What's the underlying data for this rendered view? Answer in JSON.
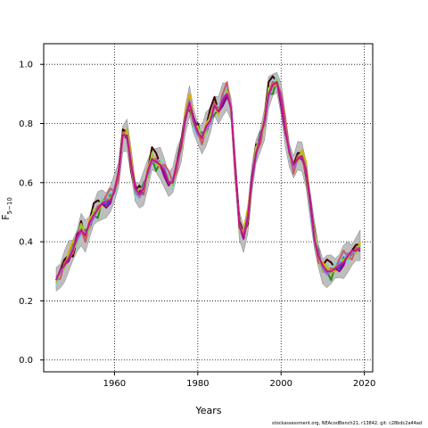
{
  "chart_data": {
    "type": "line",
    "title": "",
    "xlabel": "Years",
    "ylabel_main": "F",
    "ylabel_sub": "5−10",
    "xlim": [
      1943,
      2022
    ],
    "ylim": [
      -0.04,
      1.07
    ],
    "xticks": [
      1960,
      1980,
      2000,
      2020
    ],
    "yticks": [
      0.0,
      0.2,
      0.4,
      0.6,
      0.8,
      1.0
    ],
    "ytick_labels": [
      "0.0",
      "0.2",
      "0.4",
      "0.6",
      "0.8",
      "1.0"
    ],
    "xtick_labels": [
      "1960",
      "1980",
      "2000",
      "2020"
    ],
    "grid": "dotted",
    "x_range": [
      1946,
      2019
    ],
    "baseline": [
      [
        1946,
        0.27
      ],
      [
        1948,
        0.32
      ],
      [
        1950,
        0.37
      ],
      [
        1952,
        0.44
      ],
      [
        1953,
        0.42
      ],
      [
        1955,
        0.49
      ],
      [
        1957,
        0.53
      ],
      [
        1959,
        0.54
      ],
      [
        1960,
        0.57
      ],
      [
        1961,
        0.63
      ],
      [
        1962,
        0.76
      ],
      [
        1963,
        0.76
      ],
      [
        1964,
        0.66
      ],
      [
        1965,
        0.57
      ],
      [
        1966,
        0.56
      ],
      [
        1967,
        0.58
      ],
      [
        1968,
        0.63
      ],
      [
        1969,
        0.68
      ],
      [
        1970,
        0.67
      ],
      [
        1971,
        0.66
      ],
      [
        1972,
        0.64
      ],
      [
        1973,
        0.6
      ],
      [
        1974,
        0.6
      ],
      [
        1975,
        0.66
      ],
      [
        1976,
        0.72
      ],
      [
        1977,
        0.82
      ],
      [
        1978,
        0.87
      ],
      [
        1979,
        0.8
      ],
      [
        1980,
        0.77
      ],
      [
        1981,
        0.75
      ],
      [
        1982,
        0.78
      ],
      [
        1983,
        0.81
      ],
      [
        1984,
        0.86
      ],
      [
        1985,
        0.84
      ],
      [
        1986,
        0.88
      ],
      [
        1987,
        0.9
      ],
      [
        1988,
        0.85
      ],
      [
        1989,
        0.64
      ],
      [
        1990,
        0.45
      ],
      [
        1991,
        0.42
      ],
      [
        1992,
        0.48
      ],
      [
        1993,
        0.6
      ],
      [
        1994,
        0.7
      ],
      [
        1995,
        0.75
      ],
      [
        1996,
        0.8
      ],
      [
        1997,
        0.9
      ],
      [
        1998,
        0.93
      ],
      [
        1999,
        0.94
      ],
      [
        2000,
        0.88
      ],
      [
        2001,
        0.78
      ],
      [
        2002,
        0.7
      ],
      [
        2003,
        0.65
      ],
      [
        2004,
        0.68
      ],
      [
        2005,
        0.69
      ],
      [
        2006,
        0.64
      ],
      [
        2007,
        0.52
      ],
      [
        2008,
        0.41
      ],
      [
        2009,
        0.35
      ],
      [
        2010,
        0.31
      ],
      [
        2011,
        0.3
      ],
      [
        2012,
        0.3
      ],
      [
        2013,
        0.31
      ],
      [
        2014,
        0.32
      ],
      [
        2015,
        0.33
      ],
      [
        2016,
        0.35
      ],
      [
        2017,
        0.36
      ],
      [
        2018,
        0.37
      ],
      [
        2019,
        0.38
      ]
    ],
    "band_halfwidth": 0.045,
    "series": [
      {
        "color": "#3a0000",
        "offset": [
          0.0,
          0.01,
          0.02,
          0.01,
          -0.02,
          0.0,
          0.03,
          -0.02,
          0.01,
          0.04,
          0.03,
          0.0,
          0.02,
          0.0
        ]
      },
      {
        "color": "#228b22",
        "offset": [
          -0.01,
          0.0,
          0.01,
          0.0,
          0.02,
          -0.01,
          0.0,
          0.02,
          -0.01,
          0.0,
          -0.03,
          0.01,
          0.0,
          0.02
        ]
      },
      {
        "color": "#1f3fbf",
        "offset": [
          0.01,
          -0.01,
          0.0,
          0.01,
          0.0,
          0.01,
          -0.01,
          0.0,
          0.0,
          -0.01,
          0.0,
          0.0,
          -0.01,
          0.0
        ]
      },
      {
        "color": "#d4b000",
        "offset": [
          0.0,
          0.01,
          -0.01,
          0.02,
          0.03,
          0.01,
          0.02,
          -0.01,
          0.02,
          0.01,
          0.0,
          -0.01,
          0.01,
          0.01
        ]
      },
      {
        "color": "#8b008b",
        "offset": [
          0.01,
          0.0,
          0.0,
          -0.01,
          0.0,
          0.02,
          0.01,
          0.01,
          -0.01,
          0.0,
          0.01,
          0.0,
          -0.02,
          -0.01
        ]
      },
      {
        "color": "#87ceeb",
        "offset": [
          -0.02,
          -0.01,
          0.0,
          0.0,
          0.01,
          -0.02,
          -0.01,
          0.01,
          0.0,
          -0.01,
          0.0,
          0.02,
          0.01,
          0.03
        ]
      },
      {
        "color": "#cd5c5c",
        "offset": [
          0.0,
          -0.02,
          0.01,
          0.0,
          -0.01,
          0.0,
          0.0,
          -0.02,
          0.01,
          0.0,
          0.01,
          0.0,
          0.02,
          0.04
        ]
      },
      {
        "color": "#9acd32",
        "offset": [
          -0.01,
          0.01,
          -0.01,
          0.01,
          0.0,
          -0.01,
          0.02,
          0.0,
          -0.01,
          0.02,
          -0.01,
          0.01,
          0.0,
          0.01
        ]
      },
      {
        "color": "#9370db",
        "offset": [
          0.01,
          0.0,
          0.0,
          0.0,
          0.01,
          0.0,
          -0.01,
          0.01,
          0.0,
          -0.01,
          0.0,
          0.0,
          0.01,
          0.0
        ]
      },
      {
        "color": "#c71585",
        "offset": [
          0.0,
          0.01,
          0.0,
          0.0,
          0.0,
          0.01,
          0.0,
          0.0,
          0.01,
          0.0,
          0.0,
          0.0,
          0.0,
          0.0
        ]
      }
    ],
    "band_color": "#bebebe"
  },
  "footer": {
    "text": "stockassessment.org, NEAcodBench21, r13842, git: c28bdc2a44ad"
  }
}
